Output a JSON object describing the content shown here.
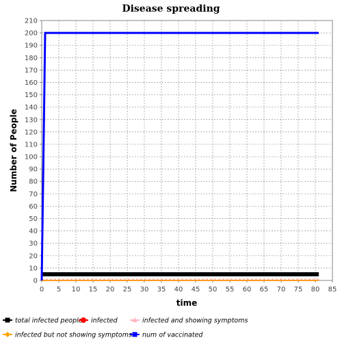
{
  "chart_data": {
    "type": "line",
    "title": "Disease spreading",
    "xlabel": "time",
    "ylabel": "Number of People",
    "xlim": [
      0,
      85
    ],
    "ylim": [
      0,
      210
    ],
    "xticks": [
      0,
      5,
      10,
      15,
      20,
      25,
      30,
      35,
      40,
      45,
      50,
      55,
      60,
      65,
      70,
      75,
      80,
      85
    ],
    "yticks": [
      0,
      10,
      20,
      30,
      40,
      50,
      60,
      70,
      80,
      90,
      100,
      110,
      120,
      130,
      140,
      150,
      160,
      170,
      180,
      190,
      200,
      210
    ],
    "grid": true,
    "legend_position": "bottom",
    "series": [
      {
        "name": "total infected people",
        "color": "#000000",
        "marker": "square",
        "x": [
          0,
          81
        ],
        "values": [
          5,
          5
        ]
      },
      {
        "name": "infected",
        "color": "#ff0000",
        "marker": "circle",
        "x": [
          0,
          81
        ],
        "values": [
          0,
          0
        ]
      },
      {
        "name": "infected and showing symptoms",
        "color": "#ffb6c1",
        "marker": "triangle",
        "x": [
          0,
          81
        ],
        "values": [
          1,
          1
        ]
      },
      {
        "name": "infected but not showing symptoms",
        "color": "#ffa500",
        "marker": "diamond",
        "x": [
          0,
          81
        ],
        "values": [
          0,
          0
        ]
      },
      {
        "name": "num of vaccinated",
        "color": "#0000ff",
        "marker": "square",
        "x": [
          0,
          1,
          81
        ],
        "values": [
          0,
          200,
          200
        ]
      }
    ]
  }
}
